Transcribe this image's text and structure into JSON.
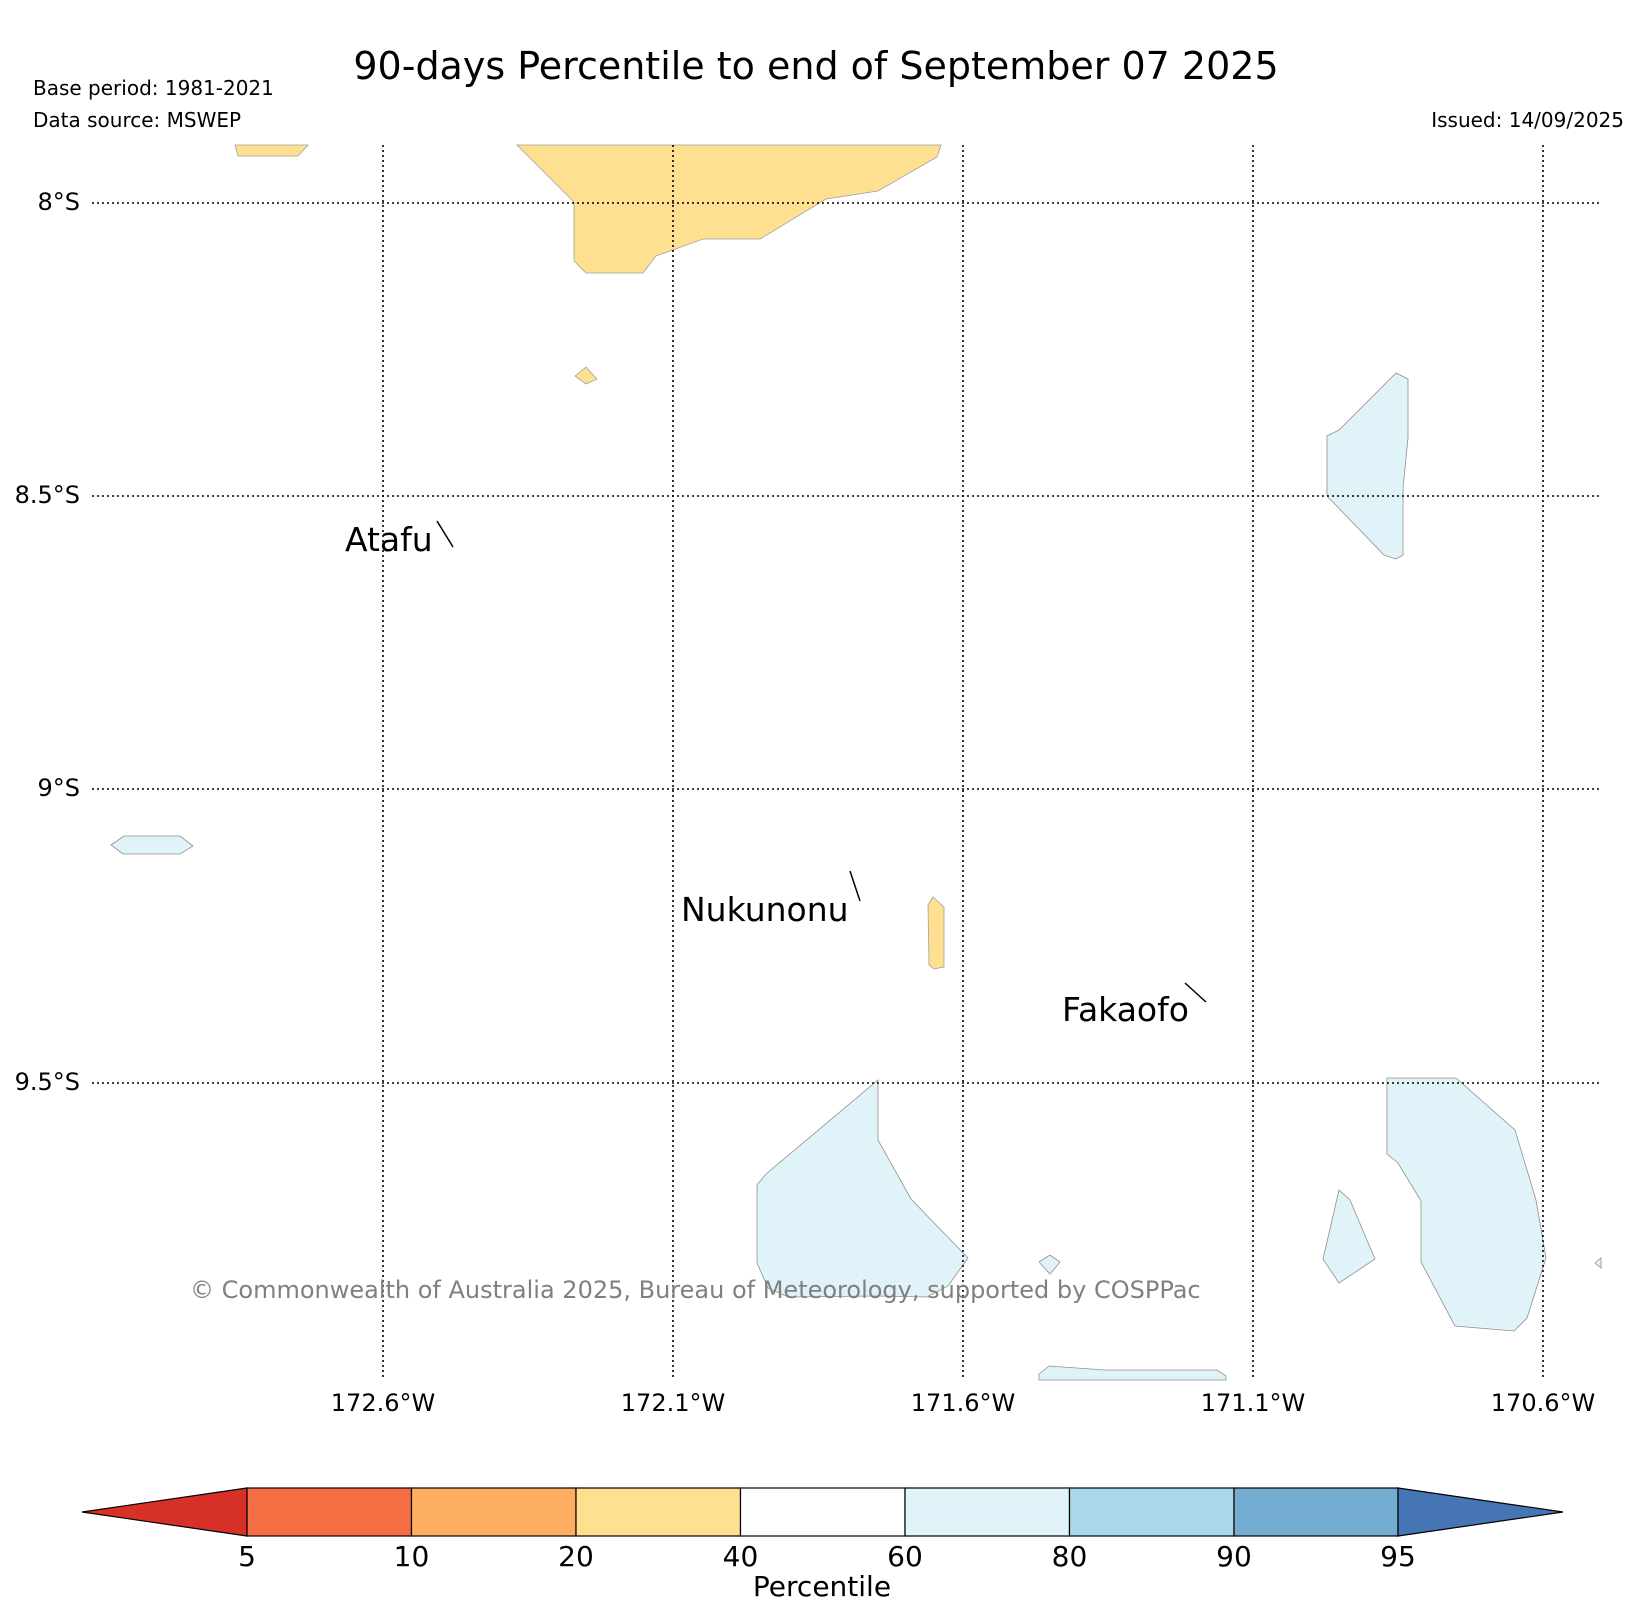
{
  "title": "90-days Percentile to end of September 07 2025",
  "base_period": "Base period: 1981-2021",
  "data_source": "Data source: MSWEP",
  "issued": "Issued: 14/09/2025",
  "map": {
    "lat_labels": [
      "8°S",
      "8.5°S",
      "9°S",
      "9.5°S"
    ],
    "lon_labels": [
      "172.6°W",
      "172.1°W",
      "171.6°W",
      "171.1°W",
      "170.6°W"
    ],
    "grid": "dotted",
    "places": [
      {
        "name": "Atafu"
      },
      {
        "name": "Nukunonu"
      },
      {
        "name": "Fakaofo"
      }
    ],
    "regions": [
      {
        "category": "20-40",
        "color": "#fee090"
      },
      {
        "category": "60-80",
        "color": "#e0f3f8"
      }
    ]
  },
  "copyright": "© Commonwealth of Australia 2025, Bureau of Meteorology, supported by COSPPac",
  "colorbar": {
    "label": "Percentile",
    "ticks": [
      "5",
      "10",
      "20",
      "40",
      "60",
      "80",
      "90",
      "95"
    ],
    "colors": [
      "#d73027",
      "#f46d43",
      "#fdae61",
      "#fee090",
      "#ffffff",
      "#e0f3f8",
      "#abd9e9",
      "#74add1",
      "#4575b4"
    ]
  }
}
